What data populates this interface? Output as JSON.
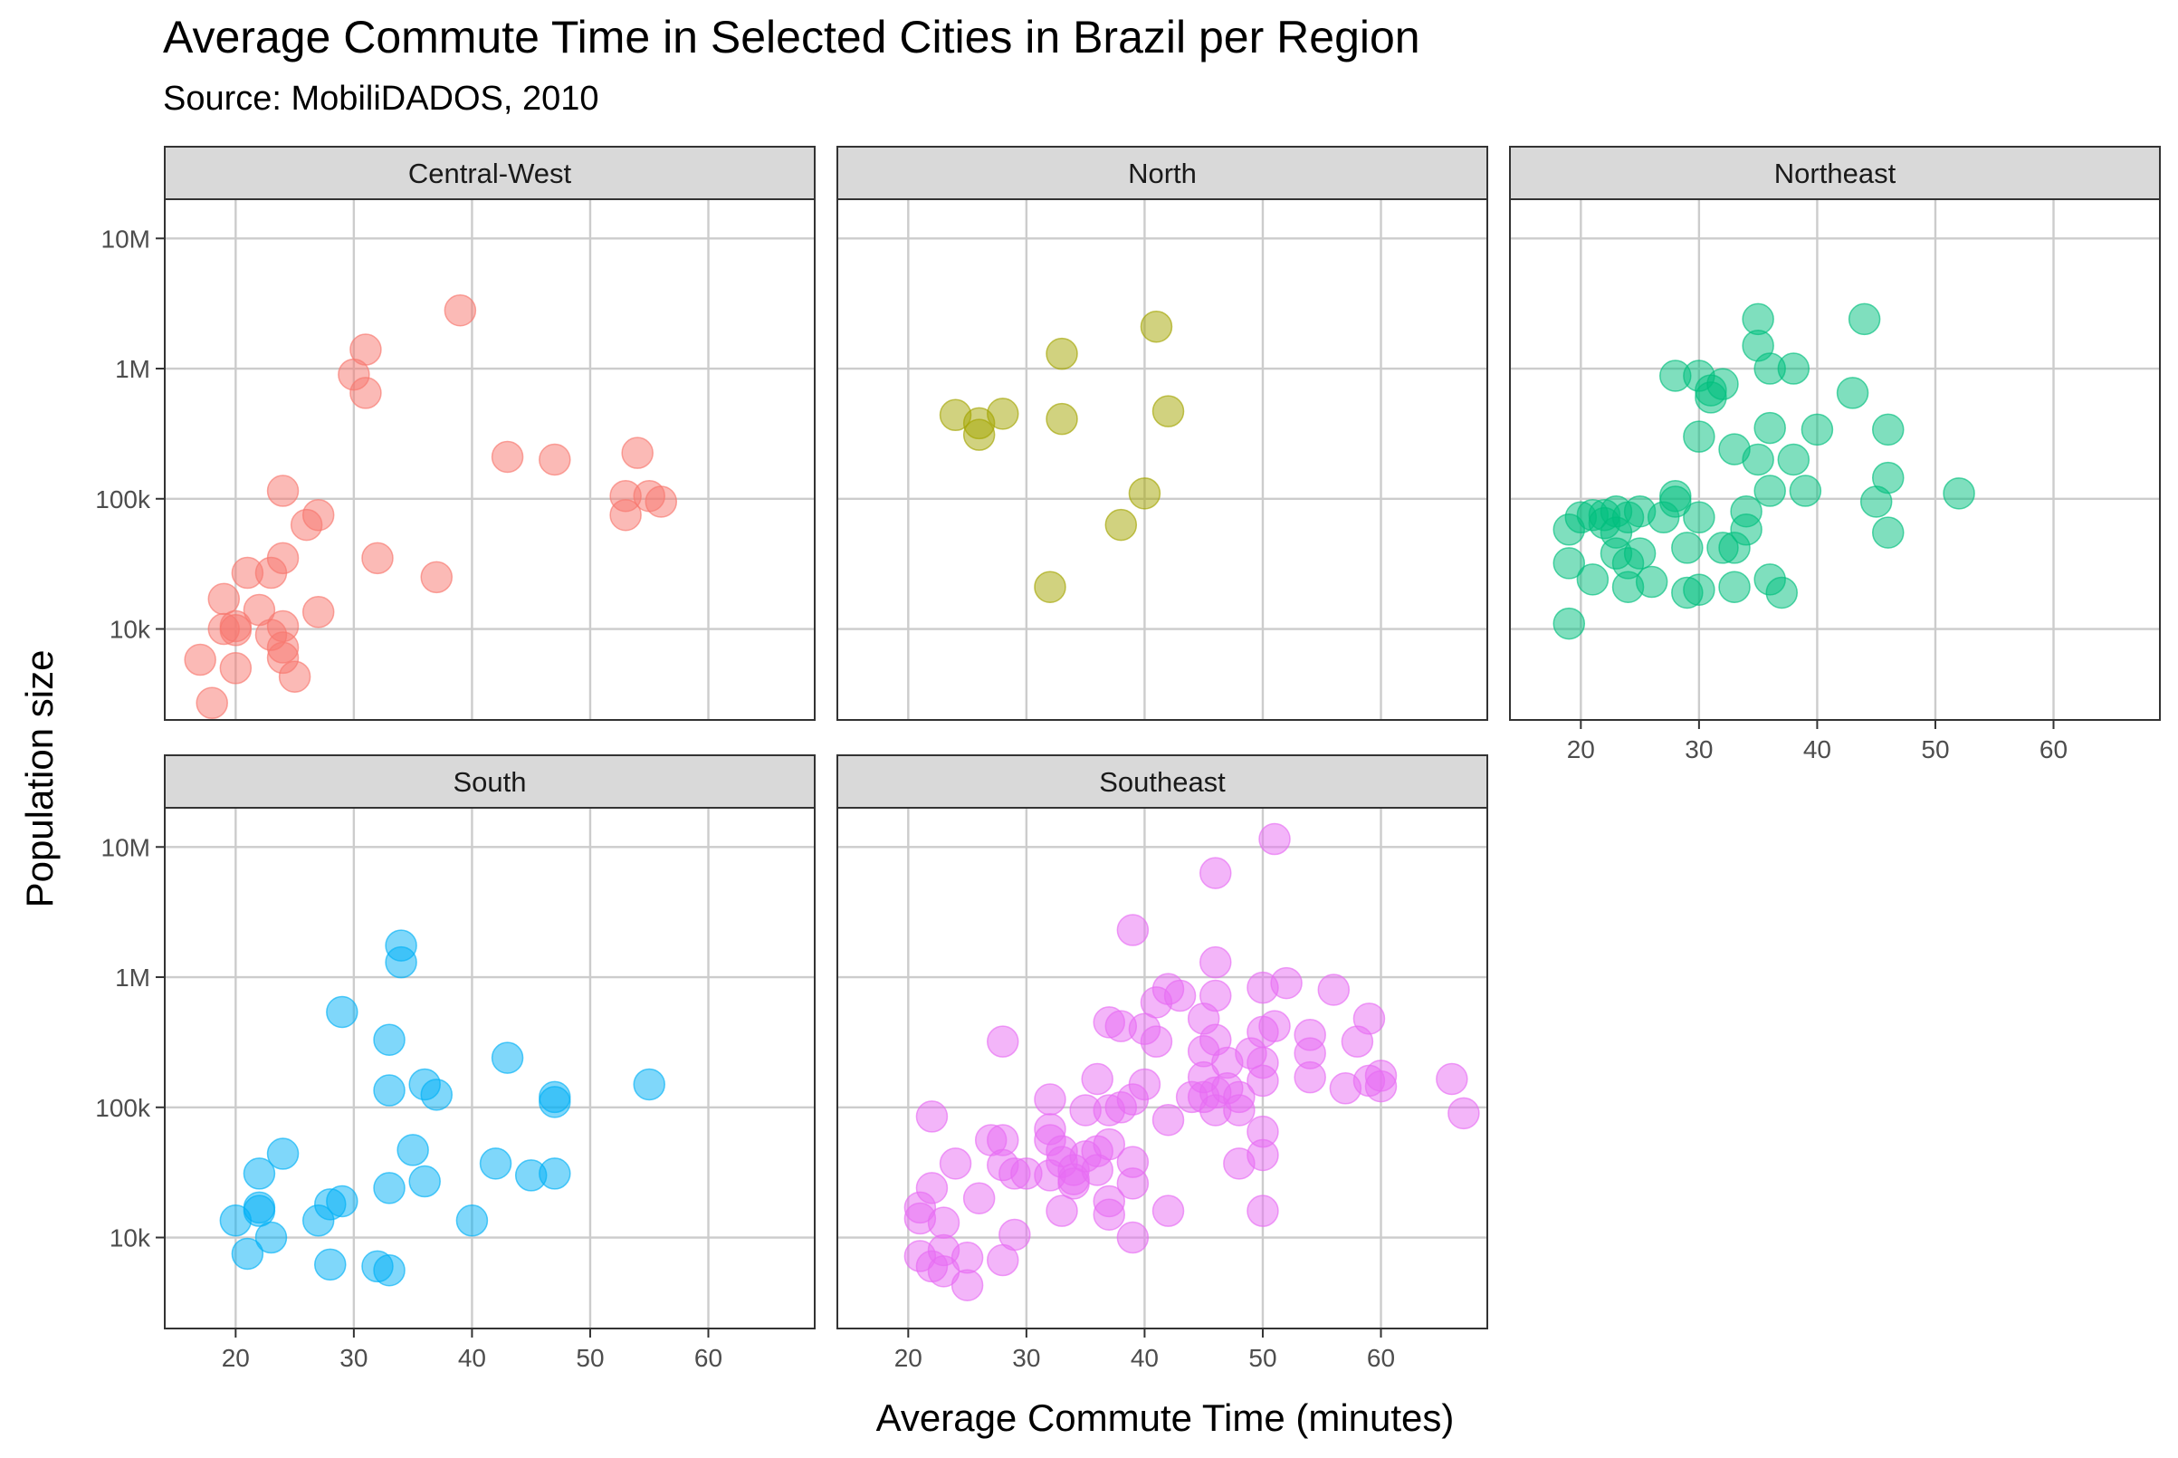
{
  "chart_data": {
    "type": "scatter",
    "title": "Average Commute Time in Selected Cities in Brazil per Region",
    "subtitle": "Source: MobiliDADOS, 2010",
    "xlabel": "Average Commute Time (minutes)",
    "ylabel": "Population size",
    "xlim": [
      14,
      69
    ],
    "ylim": [
      2000,
      20000000
    ],
    "y_scale": "log10",
    "x_ticks": [
      20,
      30,
      40,
      50,
      60
    ],
    "x_tick_labels": [
      "20",
      "30",
      "40",
      "50",
      "60"
    ],
    "y_ticks": [
      10000,
      100000,
      1000000,
      10000000
    ],
    "y_tick_labels": [
      "10k",
      "100k",
      "1M",
      "10M"
    ],
    "grid": true,
    "legend": "none",
    "point_opacity": 0.5,
    "panels": [
      {
        "name": "Central-West",
        "color": "#F8766D",
        "points": [
          [
            17,
            5800
          ],
          [
            18,
            2700
          ],
          [
            19,
            17000
          ],
          [
            19,
            10000
          ],
          [
            20,
            10500
          ],
          [
            20,
            9800
          ],
          [
            20,
            5000
          ],
          [
            21,
            27000
          ],
          [
            22,
            14000
          ],
          [
            23,
            27000
          ],
          [
            23,
            9000
          ],
          [
            24,
            35000
          ],
          [
            24,
            115000
          ],
          [
            24,
            10500
          ],
          [
            24,
            7200
          ],
          [
            24,
            6000
          ],
          [
            25,
            4300
          ],
          [
            26,
            63000
          ],
          [
            27,
            75000
          ],
          [
            27,
            13500
          ],
          [
            30,
            900000
          ],
          [
            31,
            1400000
          ],
          [
            31,
            650000
          ],
          [
            32,
            35000
          ],
          [
            37,
            25000
          ],
          [
            39,
            2800000
          ],
          [
            43,
            210000
          ],
          [
            47,
            200000
          ],
          [
            53,
            75000
          ],
          [
            53,
            105000
          ],
          [
            54,
            225000
          ],
          [
            55,
            105000
          ],
          [
            56,
            95000
          ]
        ]
      },
      {
        "name": "North",
        "color": "#A3A500",
        "points": [
          [
            24,
            440000
          ],
          [
            26,
            380000
          ],
          [
            26,
            310000
          ],
          [
            28,
            450000
          ],
          [
            32,
            21000
          ],
          [
            33,
            1300000
          ],
          [
            33,
            410000
          ],
          [
            38,
            63000
          ],
          [
            40,
            110000
          ],
          [
            41,
            2100000
          ],
          [
            42,
            470000
          ]
        ]
      },
      {
        "name": "Northeast",
        "color": "#00BF7D",
        "points": [
          [
            19,
            11000
          ],
          [
            19,
            58000
          ],
          [
            19,
            32000
          ],
          [
            20,
            72000
          ],
          [
            21,
            75000
          ],
          [
            21,
            24000
          ],
          [
            22,
            75000
          ],
          [
            22,
            65000
          ],
          [
            23,
            80000
          ],
          [
            23,
            55000
          ],
          [
            23,
            38000
          ],
          [
            24,
            72000
          ],
          [
            24,
            21000
          ],
          [
            24,
            32000
          ],
          [
            25,
            80000
          ],
          [
            25,
            38000
          ],
          [
            26,
            23000
          ],
          [
            27,
            72000
          ],
          [
            28,
            880000
          ],
          [
            28,
            105000
          ],
          [
            28,
            95000
          ],
          [
            29,
            42000
          ],
          [
            29,
            19000
          ],
          [
            30,
            880000
          ],
          [
            30,
            300000
          ],
          [
            30,
            72000
          ],
          [
            30,
            20000
          ],
          [
            31,
            680000
          ],
          [
            31,
            600000
          ],
          [
            32,
            760000
          ],
          [
            32,
            42000
          ],
          [
            33,
            240000
          ],
          [
            33,
            42000
          ],
          [
            33,
            21000
          ],
          [
            34,
            80000
          ],
          [
            34,
            58000
          ],
          [
            35,
            2400000
          ],
          [
            35,
            1500000
          ],
          [
            35,
            200000
          ],
          [
            36,
            1000000
          ],
          [
            36,
            350000
          ],
          [
            36,
            115000
          ],
          [
            36,
            24000
          ],
          [
            37,
            19000
          ],
          [
            38,
            1000000
          ],
          [
            38,
            200000
          ],
          [
            39,
            115000
          ],
          [
            40,
            340000
          ],
          [
            43,
            650000
          ],
          [
            44,
            2400000
          ],
          [
            45,
            95000
          ],
          [
            46,
            340000
          ],
          [
            46,
            145000
          ],
          [
            46,
            55000
          ],
          [
            52,
            110000
          ]
        ]
      },
      {
        "name": "South",
        "color": "#00B0F6",
        "points": [
          [
            20,
            13500
          ],
          [
            21,
            7500
          ],
          [
            22,
            31000
          ],
          [
            22,
            17000
          ],
          [
            22,
            16000
          ],
          [
            23,
            10000
          ],
          [
            24,
            44000
          ],
          [
            27,
            13500
          ],
          [
            28,
            6200
          ],
          [
            28,
            18000
          ],
          [
            29,
            540000
          ],
          [
            29,
            19000
          ],
          [
            32,
            6000
          ],
          [
            33,
            330000
          ],
          [
            33,
            135000
          ],
          [
            33,
            24000
          ],
          [
            33,
            5600
          ],
          [
            34,
            1750000
          ],
          [
            34,
            1300000
          ],
          [
            35,
            47000
          ],
          [
            36,
            150000
          ],
          [
            36,
            27000
          ],
          [
            37,
            125000
          ],
          [
            40,
            13500
          ],
          [
            42,
            37000
          ],
          [
            43,
            240000
          ],
          [
            45,
            30000
          ],
          [
            47,
            120000
          ],
          [
            47,
            110000
          ],
          [
            47,
            31000
          ],
          [
            55,
            150000
          ]
        ]
      },
      {
        "name": "Southeast",
        "color": "#E76BF3",
        "points": [
          [
            21,
            17000
          ],
          [
            21,
            14000
          ],
          [
            21,
            7200
          ],
          [
            22,
            85000
          ],
          [
            22,
            24000
          ],
          [
            22,
            6000
          ],
          [
            23,
            13000
          ],
          [
            23,
            8000
          ],
          [
            23,
            5500
          ],
          [
            24,
            37000
          ],
          [
            25,
            7000
          ],
          [
            25,
            4300
          ],
          [
            26,
            20000
          ],
          [
            27,
            56000
          ],
          [
            28,
            320000
          ],
          [
            28,
            56000
          ],
          [
            28,
            36000
          ],
          [
            28,
            6700
          ],
          [
            29,
            31000
          ],
          [
            29,
            10500
          ],
          [
            30,
            31000
          ],
          [
            32,
            115000
          ],
          [
            32,
            68000
          ],
          [
            32,
            56000
          ],
          [
            32,
            30000
          ],
          [
            33,
            46000
          ],
          [
            33,
            38000
          ],
          [
            33,
            16000
          ],
          [
            34,
            33000
          ],
          [
            34,
            28000
          ],
          [
            34,
            26000
          ],
          [
            35,
            95000
          ],
          [
            35,
            42000
          ],
          [
            36,
            165000
          ],
          [
            36,
            46000
          ],
          [
            36,
            33000
          ],
          [
            37,
            450000
          ],
          [
            37,
            95000
          ],
          [
            37,
            52000
          ],
          [
            37,
            19000
          ],
          [
            37,
            15000
          ],
          [
            38,
            420000
          ],
          [
            38,
            100000
          ],
          [
            39,
            2300000
          ],
          [
            39,
            115000
          ],
          [
            39,
            38000
          ],
          [
            39,
            26000
          ],
          [
            39,
            10000
          ],
          [
            40,
            400000
          ],
          [
            40,
            150000
          ],
          [
            41,
            640000
          ],
          [
            41,
            320000
          ],
          [
            42,
            810000
          ],
          [
            42,
            80000
          ],
          [
            42,
            16000
          ],
          [
            43,
            720000
          ],
          [
            44,
            120000
          ],
          [
            45,
            480000
          ],
          [
            45,
            270000
          ],
          [
            45,
            170000
          ],
          [
            45,
            120000
          ],
          [
            46,
            6300000
          ],
          [
            46,
            1300000
          ],
          [
            46,
            720000
          ],
          [
            46,
            330000
          ],
          [
            46,
            130000
          ],
          [
            46,
            95000
          ],
          [
            47,
            220000
          ],
          [
            47,
            140000
          ],
          [
            48,
            120000
          ],
          [
            48,
            95000
          ],
          [
            48,
            37000
          ],
          [
            49,
            260000
          ],
          [
            50,
            830000
          ],
          [
            50,
            380000
          ],
          [
            50,
            220000
          ],
          [
            50,
            160000
          ],
          [
            50,
            65000
          ],
          [
            50,
            43000
          ],
          [
            50,
            16000
          ],
          [
            51,
            11500000
          ],
          [
            51,
            420000
          ],
          [
            52,
            900000
          ],
          [
            54,
            360000
          ],
          [
            54,
            260000
          ],
          [
            54,
            170000
          ],
          [
            56,
            800000
          ],
          [
            57,
            140000
          ],
          [
            58,
            320000
          ],
          [
            59,
            480000
          ],
          [
            59,
            160000
          ],
          [
            60,
            175000
          ],
          [
            60,
            145000
          ],
          [
            66,
            165000
          ],
          [
            67,
            90000
          ]
        ]
      }
    ]
  }
}
